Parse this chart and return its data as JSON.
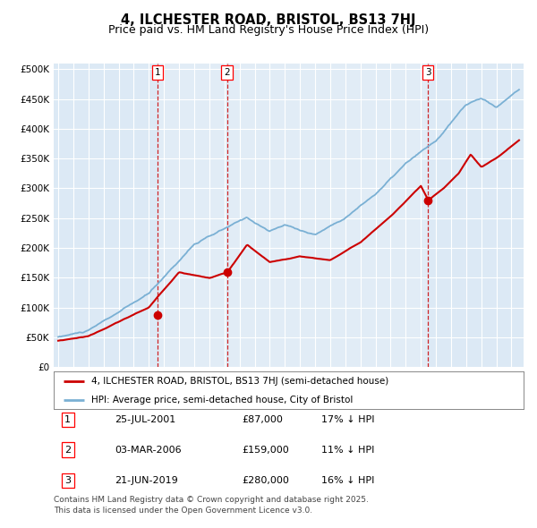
{
  "title": "4, ILCHESTER ROAD, BRISTOL, BS13 7HJ",
  "subtitle": "Price paid vs. HM Land Registry's House Price Index (HPI)",
  "title_fontsize": 10.5,
  "subtitle_fontsize": 9,
  "ylabel_ticks": [
    "£0",
    "£50K",
    "£100K",
    "£150K",
    "£200K",
    "£250K",
    "£300K",
    "£350K",
    "£400K",
    "£450K",
    "£500K"
  ],
  "ylabel_values": [
    0,
    50000,
    100000,
    150000,
    200000,
    250000,
    300000,
    350000,
    400000,
    450000,
    500000
  ],
  "ylim": [
    0,
    510000
  ],
  "xlim_start": 1994.7,
  "xlim_end": 2025.8,
  "background_color": "#ffffff",
  "plot_bg_color": "#dce9f5",
  "grid_color": "#ffffff",
  "hpi_color": "#7ab0d4",
  "price_color": "#cc0000",
  "sale_dot_color": "#cc0000",
  "sale_marker_size": 6,
  "vline_color": "#cc0000",
  "sale1_year": 2001.56,
  "sale1_price": 87000,
  "sale2_year": 2006.17,
  "sale2_price": 159000,
  "sale3_year": 2019.47,
  "sale3_price": 280000,
  "legend_price_label": "4, ILCHESTER ROAD, BRISTOL, BS13 7HJ (semi-detached house)",
  "legend_hpi_label": "HPI: Average price, semi-detached house, City of Bristol",
  "footer_text": "Contains HM Land Registry data © Crown copyright and database right 2025.\nThis data is licensed under the Open Government Licence v3.0.",
  "table_entries": [
    {
      "num": 1,
      "date": "25-JUL-2001",
      "price": "£87,000",
      "hpi": "17% ↓ HPI"
    },
    {
      "num": 2,
      "date": "03-MAR-2006",
      "price": "£159,000",
      "hpi": "11% ↓ HPI"
    },
    {
      "num": 3,
      "date": "21-JUN-2019",
      "price": "£280,000",
      "hpi": "16% ↓ HPI"
    }
  ]
}
